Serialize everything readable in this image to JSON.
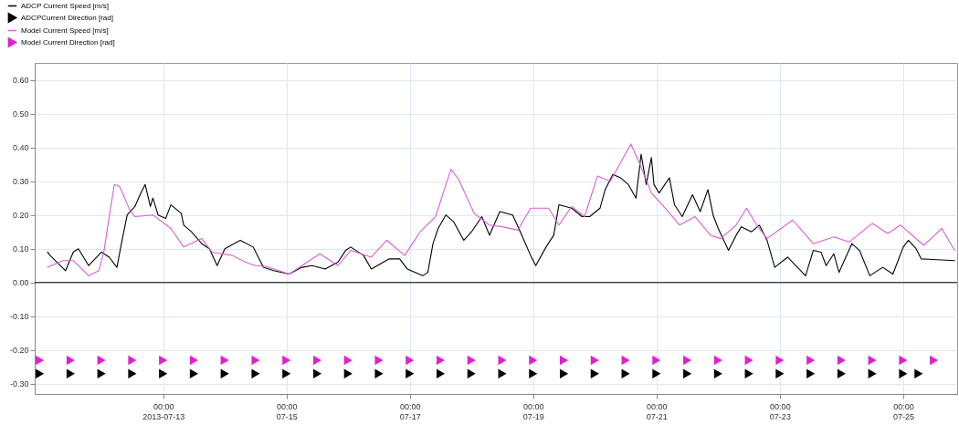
{
  "chart_data": {
    "type": "line",
    "xlim": [
      "2013-07-10T22:00",
      "2013-07-25T21:00"
    ],
    "ylim": [
      -0.33,
      0.65
    ],
    "xticks": [
      {
        "value": "2013-07-13T00:00",
        "label": "00:00\n2013-07-13"
      },
      {
        "value": "2013-07-15T00:00",
        "label": "00:00\n07-15"
      },
      {
        "value": "2013-07-17T00:00",
        "label": "00:00\n07-17"
      },
      {
        "value": "2013-07-19T00:00",
        "label": "00:00\n07-19"
      },
      {
        "value": "2013-07-21T00:00",
        "label": "00:00\n07-21"
      },
      {
        "value": "2013-07-23T00:00",
        "label": "00:00\n07-23"
      },
      {
        "value": "2013-07-25T00:00",
        "label": "00:00\n07-25"
      }
    ],
    "yticks": [
      {
        "value": 0.6,
        "label": "0.60"
      },
      {
        "value": 0.5,
        "label": "0.50"
      },
      {
        "value": 0.4,
        "label": "0.40"
      },
      {
        "value": 0.3,
        "label": "0.30"
      },
      {
        "value": 0.2,
        "label": "0.20"
      },
      {
        "value": 0.1,
        "label": "0.10"
      },
      {
        "value": 0,
        "label": "0.00"
      },
      {
        "value": -0.1,
        "label": "-0.10"
      },
      {
        "value": -0.2,
        "label": "-0.20"
      },
      {
        "value": -0.3,
        "label": "-0.30"
      }
    ],
    "grid": true,
    "legend": "top left",
    "ref_lines": [
      {
        "axis": "y",
        "value": 0,
        "color": "#000000"
      }
    ],
    "series": [
      {
        "name": "ADCP Current Speed [m/s]",
        "color": "#000000",
        "line_style": "solid",
        "x": [
          "2013-07-11T03:00",
          "2013-07-11T04:00",
          "2013-07-11T10:00",
          "2013-07-11T13:00",
          "2013-07-11T15:00",
          "2013-07-11T19:00",
          "2013-07-12T00:00",
          "2013-07-12T03:00",
          "2013-07-12T06:00",
          "2013-07-12T08:00",
          "2013-07-12T10:00",
          "2013-07-12T13:00",
          "2013-07-12T15:00",
          "2013-07-12T17:00",
          "2013-07-12T19:00",
          "2013-07-12T20:00",
          "2013-07-12T22:00",
          "2013-07-13T01:00",
          "2013-07-13T03:00",
          "2013-07-13T07:00",
          "2013-07-13T08:00",
          "2013-07-13T11:00",
          "2013-07-13T15:00",
          "2013-07-13T18:00",
          "2013-07-13T21:00",
          "2013-07-14T00:00",
          "2013-07-14T06:00",
          "2013-07-14T11:00",
          "2013-07-14T15:00",
          "2013-07-14T19:00",
          "2013-07-15T01:00",
          "2013-07-15T06:00",
          "2013-07-15T10:00",
          "2013-07-15T15:00",
          "2013-07-15T20:00",
          "2013-07-15T23:00",
          "2013-07-16T01:00",
          "2013-07-16T06:00",
          "2013-07-16T09:00",
          "2013-07-16T16:00",
          "2013-07-16T20:00",
          "2013-07-16T23:00",
          "2013-07-17T05:00",
          "2013-07-17T07:00",
          "2013-07-17T09:00",
          "2013-07-17T11:00",
          "2013-07-17T14:00",
          "2013-07-17T17:00",
          "2013-07-17T21:00",
          "2013-07-18T00:00",
          "2013-07-18T04:00",
          "2013-07-18T07:00",
          "2013-07-18T11:00",
          "2013-07-18T16:00",
          "2013-07-18T19:00",
          "2013-07-18T23:00",
          "2013-07-19T01:00",
          "2013-07-19T05:00",
          "2013-07-19T08:00",
          "2013-07-19T10:00",
          "2013-07-19T15:00",
          "2013-07-19T19:00",
          "2013-07-19T22:00",
          "2013-07-20T02:00",
          "2013-07-20T04:00",
          "2013-07-20T07:00",
          "2013-07-20T10:00",
          "2013-07-20T13:00",
          "2013-07-20T16:00",
          "2013-07-20T18:00",
          "2013-07-20T20:00",
          "2013-07-20T22:00",
          "2013-07-20T23:00",
          "2013-07-21T01:00",
          "2013-07-21T05:00",
          "2013-07-21T07:00",
          "2013-07-21T10:00",
          "2013-07-21T14:00",
          "2013-07-21T17:00",
          "2013-07-21T20:00",
          "2013-07-21T22:00",
          "2013-07-22T00:00",
          "2013-07-22T04:00",
          "2013-07-22T07:00",
          "2013-07-22T09:00",
          "2013-07-22T13:00",
          "2013-07-22T16:00",
          "2013-07-22T19:00",
          "2013-07-22T22:00",
          "2013-07-23T03:00",
          "2013-07-23T10:00",
          "2013-07-23T13:00",
          "2013-07-23T16:00",
          "2013-07-23T18:00",
          "2013-07-23T21:00",
          "2013-07-23T23:00",
          "2013-07-24T04:00",
          "2013-07-24T07:00",
          "2013-07-24T11:00",
          "2013-07-24T16:00",
          "2013-07-24T20:00",
          "2013-07-25T00:00",
          "2013-07-25T02:00",
          "2013-07-25T05:00",
          "2013-07-25T07:00",
          "2013-07-25T20:00"
        ],
        "values": [
          0.09,
          0.08,
          0.035,
          0.09,
          0.1,
          0.05,
          0.09,
          0.075,
          0.045,
          0.125,
          0.2,
          0.225,
          0.26,
          0.29,
          0.225,
          0.25,
          0.2,
          0.19,
          0.23,
          0.205,
          0.17,
          0.15,
          0.115,
          0.1,
          0.05,
          0.1,
          0.125,
          0.105,
          0.045,
          0.035,
          0.025,
          0.045,
          0.05,
          0.04,
          0.06,
          0.095,
          0.105,
          0.08,
          0.04,
          0.07,
          0.07,
          0.04,
          0.02,
          0.03,
          0.115,
          0.16,
          0.2,
          0.18,
          0.125,
          0.15,
          0.195,
          0.14,
          0.21,
          0.2,
          0.15,
          0.08,
          0.05,
          0.105,
          0.14,
          0.23,
          0.22,
          0.195,
          0.195,
          0.22,
          0.275,
          0.32,
          0.31,
          0.29,
          0.25,
          0.38,
          0.29,
          0.37,
          0.29,
          0.265,
          0.31,
          0.23,
          0.195,
          0.26,
          0.21,
          0.275,
          0.2,
          0.16,
          0.095,
          0.14,
          0.165,
          0.15,
          0.17,
          0.125,
          0.045,
          0.075,
          0.02,
          0.095,
          0.09,
          0.05,
          0.085,
          0.03,
          0.115,
          0.095,
          0.02,
          0.045,
          0.025,
          0.105,
          0.125,
          0.1,
          0.07,
          0.065
        ]
      },
      {
        "name": "ADCPCurrent Direction [rad]",
        "type": "scatter",
        "marker": "triangle",
        "color": "#000000",
        "x": [
          "2013-07-11T00:00",
          "2013-07-11T12:00",
          "2013-07-12T00:00",
          "2013-07-12T12:00",
          "2013-07-13T00:00",
          "2013-07-13T12:00",
          "2013-07-14T00:00",
          "2013-07-14T12:00",
          "2013-07-15T00:00",
          "2013-07-15T12:00",
          "2013-07-16T00:00",
          "2013-07-16T12:00",
          "2013-07-17T00:00",
          "2013-07-17T12:00",
          "2013-07-18T00:00",
          "2013-07-18T12:00",
          "2013-07-19T00:00",
          "2013-07-19T12:00",
          "2013-07-20T00:00",
          "2013-07-20T12:00",
          "2013-07-21T00:00",
          "2013-07-21T12:00",
          "2013-07-22T00:00",
          "2013-07-22T12:00",
          "2013-07-23T00:00",
          "2013-07-23T12:00",
          "2013-07-24T00:00",
          "2013-07-24T12:00",
          "2013-07-25T00:00",
          "2013-07-25T06:00"
        ],
        "values": [
          -0.27,
          -0.27,
          -0.27,
          -0.27,
          -0.27,
          -0.27,
          -0.27,
          -0.27,
          -0.27,
          -0.27,
          -0.27,
          -0.27,
          -0.27,
          -0.27,
          -0.27,
          -0.27,
          -0.27,
          -0.27,
          -0.27,
          -0.27,
          -0.27,
          -0.27,
          -0.27,
          -0.27,
          -0.27,
          -0.27,
          -0.27,
          -0.27,
          -0.27,
          -0.27
        ]
      },
      {
        "name": "Model Current Speed [m/s]",
        "color": "#d85fd8",
        "line_style": "solid",
        "x": [
          "2013-07-11T03:00",
          "2013-07-11T09:00",
          "2013-07-11T13:00",
          "2013-07-11T19:00",
          "2013-07-11T23:00",
          "2013-07-12T01:00",
          "2013-07-12T03:00",
          "2013-07-12T05:00",
          "2013-07-12T07:00",
          "2013-07-12T11:00",
          "2013-07-12T13:00",
          "2013-07-12T20:00",
          "2013-07-13T03:00",
          "2013-07-13T08:00",
          "2013-07-13T15:00",
          "2013-07-13T19:00",
          "2013-07-14T03:00",
          "2013-07-14T08:00",
          "2013-07-14T12:00",
          "2013-07-14T16:00",
          "2013-07-15T01:00",
          "2013-07-15T06:00",
          "2013-07-15T13:00",
          "2013-07-15T20:00",
          "2013-07-16T01:00",
          "2013-07-16T09:00",
          "2013-07-16T15:00",
          "2013-07-16T22:00",
          "2013-07-17T04:00",
          "2013-07-17T10:00",
          "2013-07-17T16:00",
          "2013-07-17T19:00",
          "2013-07-18T01:00",
          "2013-07-18T07:00",
          "2013-07-18T12:00",
          "2013-07-18T18:00",
          "2013-07-18T23:00",
          "2013-07-19T06:00",
          "2013-07-19T10:00",
          "2013-07-19T15:00",
          "2013-07-19T20:00",
          "2013-07-20T01:00",
          "2013-07-20T06:00",
          "2013-07-20T14:00",
          "2013-07-20T17:00",
          "2013-07-20T22:00",
          "2013-07-21T04:00",
          "2013-07-21T09:00",
          "2013-07-21T15:00",
          "2013-07-21T21:00",
          "2013-07-22T01:00",
          "2013-07-22T07:00",
          "2013-07-22T11:00",
          "2013-07-22T15:00",
          "2013-07-22T19:00",
          "2013-07-23T05:00",
          "2013-07-23T13:00",
          "2013-07-23T21:00",
          "2013-07-24T03:00",
          "2013-07-24T12:00",
          "2013-07-24T18:00",
          "2013-07-24T23:00",
          "2013-07-25T08:00",
          "2013-07-25T15:00",
          "2013-07-25T20:00"
        ],
        "values": [
          0.045,
          0.065,
          0.065,
          0.02,
          0.035,
          0.095,
          0.195,
          0.29,
          0.285,
          0.215,
          0.195,
          0.2,
          0.16,
          0.105,
          0.13,
          0.09,
          0.08,
          0.06,
          0.05,
          0.048,
          0.025,
          0.05,
          0.085,
          0.05,
          0.095,
          0.075,
          0.125,
          0.08,
          0.15,
          0.195,
          0.335,
          0.305,
          0.205,
          0.17,
          0.165,
          0.155,
          0.22,
          0.22,
          0.17,
          0.225,
          0.195,
          0.315,
          0.3,
          0.41,
          0.36,
          0.265,
          0.215,
          0.17,
          0.195,
          0.14,
          0.13,
          0.17,
          0.22,
          0.17,
          0.13,
          0.185,
          0.115,
          0.135,
          0.12,
          0.175,
          0.145,
          0.17,
          0.11,
          0.16,
          0.095
        ]
      },
      {
        "name": "Model Current Direction [rad]",
        "type": "scatter",
        "marker": "triangle",
        "color": "#e020d0",
        "x": [
          "2013-07-11T00:00",
          "2013-07-11T12:00",
          "2013-07-12T00:00",
          "2013-07-12T12:00",
          "2013-07-13T00:00",
          "2013-07-13T12:00",
          "2013-07-14T00:00",
          "2013-07-14T12:00",
          "2013-07-15T00:00",
          "2013-07-15T12:00",
          "2013-07-16T00:00",
          "2013-07-16T12:00",
          "2013-07-17T00:00",
          "2013-07-17T12:00",
          "2013-07-18T00:00",
          "2013-07-18T12:00",
          "2013-07-19T00:00",
          "2013-07-19T12:00",
          "2013-07-20T00:00",
          "2013-07-20T12:00",
          "2013-07-21T00:00",
          "2013-07-21T12:00",
          "2013-07-22T00:00",
          "2013-07-22T12:00",
          "2013-07-23T00:00",
          "2013-07-23T12:00",
          "2013-07-24T00:00",
          "2013-07-24T12:00",
          "2013-07-25T00:00",
          "2013-07-25T12:00"
        ],
        "values": [
          -0.23,
          -0.23,
          -0.23,
          -0.23,
          -0.23,
          -0.23,
          -0.23,
          -0.23,
          -0.23,
          -0.23,
          -0.23,
          -0.23,
          -0.23,
          -0.23,
          -0.23,
          -0.23,
          -0.23,
          -0.23,
          -0.23,
          -0.23,
          -0.23,
          -0.23,
          -0.23,
          -0.23,
          -0.23,
          -0.23,
          -0.23,
          -0.23,
          -0.23,
          -0.23
        ]
      }
    ]
  }
}
